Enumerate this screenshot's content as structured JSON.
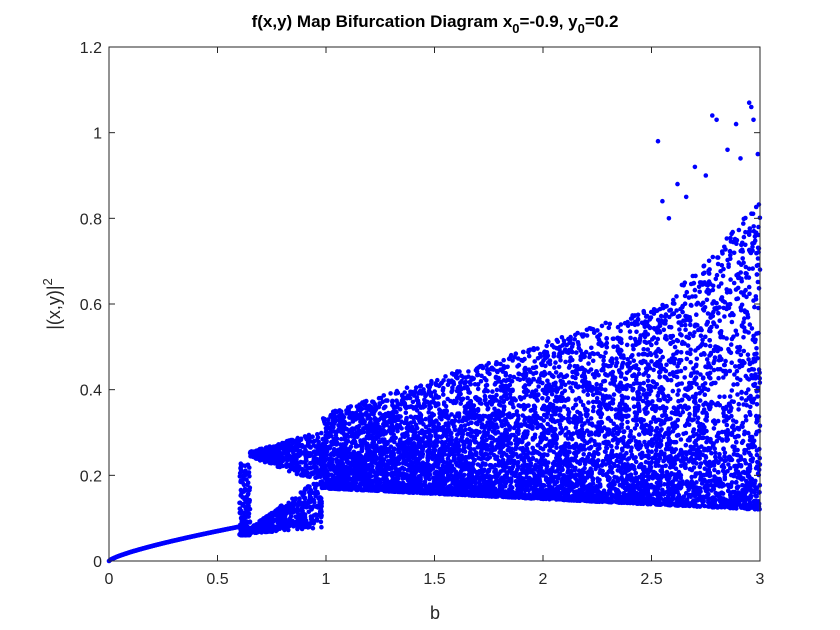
{
  "chart_data": {
    "type": "scatter",
    "title": {
      "prefix": "f(x,y) Map Bifurcation Diagram x",
      "x_sub": "0",
      "mid": "=-0.9, y",
      "y_sub": "0",
      "suffix": "=0.2"
    },
    "xlabel": "b",
    "ylabel": {
      "base": "|(x,y)|",
      "sup": "2"
    },
    "xlim": [
      0,
      3
    ],
    "ylim": [
      0,
      1.2
    ],
    "xticks": [
      "0",
      "0.5",
      "1",
      "1.5",
      "2",
      "2.5",
      "3"
    ],
    "yticks": [
      "0",
      "0.2",
      "0.4",
      "0.6",
      "0.8",
      "1",
      "1.2"
    ],
    "grid": false,
    "marker_color": "#0000ff",
    "regimes": [
      {
        "b_range": [
          0,
          0.6
        ],
        "value_at_start": 0.0,
        "value_at_end": 0.08,
        "shape": "single stable branch"
      },
      {
        "b_range": [
          0.6,
          0.65
        ],
        "cloud_values": [
          0.06,
          0.23
        ]
      },
      {
        "b_range": [
          0.65,
          0.98
        ],
        "upper_branch": [
          0.245,
          0.2
        ],
        "lower_branch": [
          0.075,
          0.18
        ]
      },
      {
        "b_range": [
          0.98,
          3.0
        ],
        "band_min": [
          0.17,
          0.12
        ],
        "band_max": [
          0.34,
          0.84
        ]
      }
    ],
    "outliers": [
      {
        "b": 2.53,
        "value": 0.98
      },
      {
        "b": 2.78,
        "value": 1.04
      },
      {
        "b": 2.8,
        "value": 1.03
      },
      {
        "b": 2.89,
        "value": 1.02
      },
      {
        "b": 2.95,
        "value": 1.07
      },
      {
        "b": 2.96,
        "value": 1.06
      },
      {
        "b": 2.97,
        "value": 1.03
      },
      {
        "b": 2.85,
        "value": 0.96
      },
      {
        "b": 2.91,
        "value": 0.94
      },
      {
        "b": 2.99,
        "value": 0.95
      },
      {
        "b": 2.7,
        "value": 0.92
      },
      {
        "b": 2.75,
        "value": 0.9
      },
      {
        "b": 2.62,
        "value": 0.88
      },
      {
        "b": 2.66,
        "value": 0.85
      },
      {
        "b": 2.55,
        "value": 0.84
      },
      {
        "b": 2.58,
        "value": 0.8
      }
    ]
  }
}
